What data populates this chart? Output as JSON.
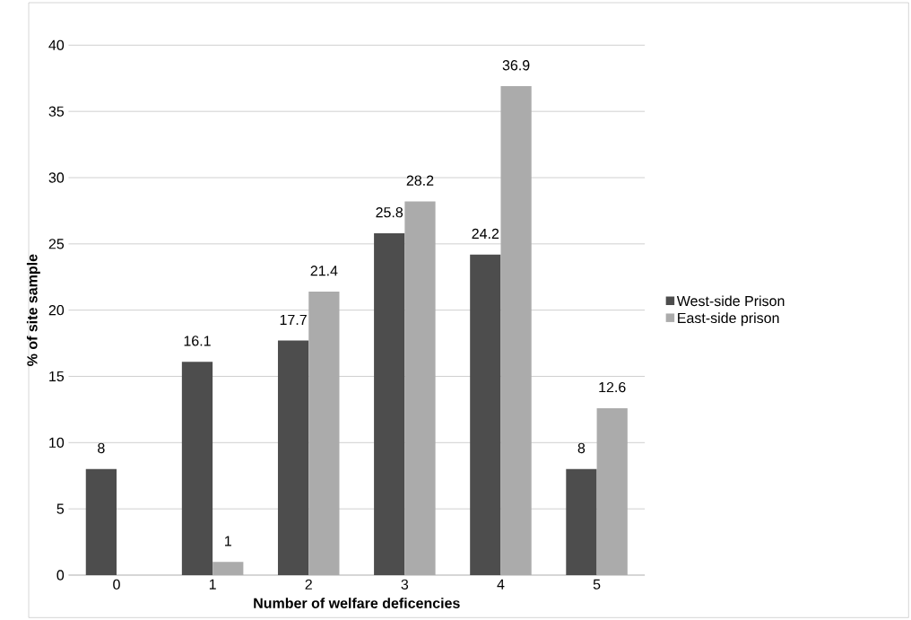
{
  "chart_data": {
    "type": "bar",
    "xlabel": "Number of welfare deficencies",
    "ylabel": "% of site sample",
    "categories": [
      "0",
      "1",
      "2",
      "3",
      "4",
      "5"
    ],
    "series": [
      {
        "name": "West-side Prison",
        "color": "#4d4d4d",
        "values": [
          8,
          16.1,
          17.7,
          25.8,
          24.2,
          8
        ],
        "value_labels": [
          "8",
          "16.1",
          "17.7",
          "25.8",
          "24.2",
          "8"
        ]
      },
      {
        "name": "East-side prison",
        "color": "#ababab",
        "values": [
          0,
          1,
          21.4,
          28.2,
          36.9,
          12.6
        ],
        "value_labels": [
          null,
          "1",
          "21.4",
          "28.2",
          "36.9",
          "12.6"
        ]
      }
    ],
    "ylim": [
      0,
      40
    ],
    "yticks": [
      0,
      5,
      10,
      15,
      20,
      25,
      30,
      35,
      40
    ],
    "grid": "y",
    "legend": "right"
  }
}
